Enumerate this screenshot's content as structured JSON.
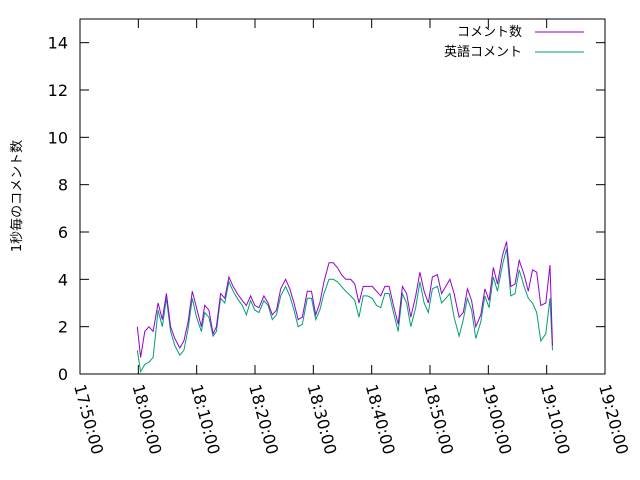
{
  "chart_data": {
    "type": "line",
    "title": "",
    "xlabel": "",
    "ylabel": "1秒毎のコメント数",
    "ylim": [
      0,
      15
    ],
    "xlim": [
      "17:50:00",
      "19:20:00"
    ],
    "y_ticks": [
      0,
      2,
      4,
      6,
      8,
      10,
      12,
      14
    ],
    "x_ticks": [
      "17:50:00",
      "18:00:00",
      "18:10:00",
      "18:20:00",
      "18:30:00",
      "18:40:00",
      "18:50:00",
      "19:00:00",
      "19:10:00",
      "19:20:00"
    ],
    "grid": false,
    "legend_position": "top-right",
    "series": [
      {
        "name": "コメント数",
        "color": "#9400d3",
        "points": [
          [
            "17:59:49",
            2.0
          ],
          [
            "18:00:23",
            0.7
          ],
          [
            "18:01:06",
            1.8
          ],
          [
            "18:01:49",
            2.0
          ],
          [
            "18:02:32",
            1.8
          ],
          [
            "18:03:23",
            3.0
          ],
          [
            "18:04:06",
            2.3
          ],
          [
            "18:04:49",
            3.4
          ],
          [
            "18:05:32",
            2.0
          ],
          [
            "18:06:15",
            1.5
          ],
          [
            "18:07:06",
            1.1
          ],
          [
            "18:07:49",
            1.4
          ],
          [
            "18:08:32",
            2.2
          ],
          [
            "18:09:15",
            3.5
          ],
          [
            "18:09:58",
            2.8
          ],
          [
            "18:10:49",
            2.0
          ],
          [
            "18:11:23",
            2.9
          ],
          [
            "18:12:06",
            2.7
          ],
          [
            "18:12:49",
            1.7
          ],
          [
            "18:13:23",
            2.0
          ],
          [
            "18:14:06",
            3.4
          ],
          [
            "18:14:49",
            3.2
          ],
          [
            "18:15:32",
            4.1
          ],
          [
            "18:16:15",
            3.7
          ],
          [
            "18:16:58",
            3.4
          ],
          [
            "18:17:49",
            3.1
          ],
          [
            "18:18:32",
            2.9
          ],
          [
            "18:19:15",
            3.3
          ],
          [
            "18:19:58",
            2.9
          ],
          [
            "18:20:41",
            2.8
          ],
          [
            "18:21:32",
            3.3
          ],
          [
            "18:22:15",
            3.0
          ],
          [
            "18:22:58",
            2.5
          ],
          [
            "18:23:41",
            2.7
          ],
          [
            "18:24:24",
            3.6
          ],
          [
            "18:25:15",
            4.0
          ],
          [
            "18:25:58",
            3.6
          ],
          [
            "18:26:41",
            3.0
          ],
          [
            "18:27:24",
            2.3
          ],
          [
            "18:28:07",
            2.4
          ],
          [
            "18:28:58",
            3.5
          ],
          [
            "18:29:41",
            3.5
          ],
          [
            "18:30:24",
            2.5
          ],
          [
            "18:31:07",
            3.0
          ],
          [
            "18:31:50",
            3.9
          ],
          [
            "18:32:41",
            4.7
          ],
          [
            "18:33:24",
            4.7
          ],
          [
            "18:34:07",
            4.5
          ],
          [
            "18:34:50",
            4.2
          ],
          [
            "18:35:33",
            4.0
          ],
          [
            "18:36:24",
            4.0
          ],
          [
            "18:37:07",
            3.8
          ],
          [
            "18:37:50",
            3.0
          ],
          [
            "18:38:33",
            3.7
          ],
          [
            "18:39:16",
            3.7
          ],
          [
            "18:40:07",
            3.7
          ],
          [
            "18:40:50",
            3.5
          ],
          [
            "18:41:33",
            3.3
          ],
          [
            "18:42:16",
            3.7
          ],
          [
            "18:42:59",
            3.7
          ],
          [
            "18:43:50",
            2.8
          ],
          [
            "18:44:33",
            2.1
          ],
          [
            "18:45:16",
            3.7
          ],
          [
            "18:45:59",
            3.4
          ],
          [
            "18:46:42",
            2.4
          ],
          [
            "18:47:33",
            3.3
          ],
          [
            "18:48:16",
            4.3
          ],
          [
            "18:48:59",
            3.5
          ],
          [
            "18:49:42",
            3.0
          ],
          [
            "18:50:25",
            4.1
          ],
          [
            "18:51:16",
            4.2
          ],
          [
            "18:51:59",
            3.4
          ],
          [
            "18:52:42",
            3.7
          ],
          [
            "18:53:25",
            4.0
          ],
          [
            "18:54:08",
            3.4
          ],
          [
            "18:54:59",
            2.4
          ],
          [
            "18:55:42",
            2.6
          ],
          [
            "18:56:25",
            3.6
          ],
          [
            "18:57:08",
            3.1
          ],
          [
            "18:57:51",
            2.0
          ],
          [
            "18:58:42",
            2.5
          ],
          [
            "18:59:25",
            3.6
          ],
          [
            "19:00:08",
            3.1
          ],
          [
            "19:00:51",
            4.5
          ],
          [
            "19:01:34",
            3.8
          ],
          [
            "19:02:25",
            5.0
          ],
          [
            "19:03:08",
            5.6
          ],
          [
            "19:03:51",
            3.7
          ],
          [
            "19:04:34",
            3.8
          ],
          [
            "19:05:17",
            4.8
          ],
          [
            "19:06:08",
            4.2
          ],
          [
            "19:06:51",
            3.5
          ],
          [
            "19:07:34",
            4.4
          ],
          [
            "19:08:17",
            4.3
          ],
          [
            "19:09:00",
            2.9
          ],
          [
            "19:09:51",
            3.0
          ],
          [
            "19:10:34",
            4.6
          ],
          [
            "19:11:00",
            1.2
          ]
        ]
      },
      {
        "name": "英語コメント",
        "color": "#009e73",
        "points": [
          [
            "17:59:49",
            1.0
          ],
          [
            "18:00:23",
            0.1
          ],
          [
            "18:01:06",
            0.4
          ],
          [
            "18:01:49",
            0.5
          ],
          [
            "18:02:32",
            0.7
          ],
          [
            "18:03:23",
            2.7
          ],
          [
            "18:04:06",
            2.0
          ],
          [
            "18:04:49",
            3.2
          ],
          [
            "18:05:32",
            1.8
          ],
          [
            "18:06:15",
            1.2
          ],
          [
            "18:07:06",
            0.8
          ],
          [
            "18:07:49",
            1.0
          ],
          [
            "18:08:32",
            1.9
          ],
          [
            "18:09:15",
            3.2
          ],
          [
            "18:09:58",
            2.4
          ],
          [
            "18:10:49",
            1.8
          ],
          [
            "18:11:23",
            2.6
          ],
          [
            "18:12:06",
            2.4
          ],
          [
            "18:12:49",
            1.6
          ],
          [
            "18:13:23",
            1.8
          ],
          [
            "18:14:06",
            3.2
          ],
          [
            "18:14:49",
            3.0
          ],
          [
            "18:15:32",
            3.9
          ],
          [
            "18:16:15",
            3.5
          ],
          [
            "18:16:58",
            3.2
          ],
          [
            "18:17:49",
            2.9
          ],
          [
            "18:18:32",
            2.5
          ],
          [
            "18:19:15",
            3.1
          ],
          [
            "18:19:58",
            2.7
          ],
          [
            "18:20:41",
            2.6
          ],
          [
            "18:21:32",
            3.1
          ],
          [
            "18:22:15",
            2.9
          ],
          [
            "18:22:58",
            2.3
          ],
          [
            "18:23:41",
            2.5
          ],
          [
            "18:24:24",
            3.3
          ],
          [
            "18:25:15",
            3.7
          ],
          [
            "18:25:58",
            3.3
          ],
          [
            "18:26:41",
            2.7
          ],
          [
            "18:27:24",
            2.0
          ],
          [
            "18:28:07",
            2.1
          ],
          [
            "18:28:58",
            3.2
          ],
          [
            "18:29:41",
            3.2
          ],
          [
            "18:30:24",
            2.3
          ],
          [
            "18:31:07",
            2.7
          ],
          [
            "18:31:50",
            3.4
          ],
          [
            "18:32:41",
            4.0
          ],
          [
            "18:33:24",
            4.0
          ],
          [
            "18:34:07",
            3.9
          ],
          [
            "18:34:50",
            3.7
          ],
          [
            "18:35:33",
            3.5
          ],
          [
            "18:36:24",
            3.3
          ],
          [
            "18:37:07",
            3.1
          ],
          [
            "18:37:50",
            2.4
          ],
          [
            "18:38:33",
            3.3
          ],
          [
            "18:39:16",
            3.3
          ],
          [
            "18:40:07",
            3.2
          ],
          [
            "18:40:50",
            2.9
          ],
          [
            "18:41:33",
            2.8
          ],
          [
            "18:42:16",
            3.4
          ],
          [
            "18:42:59",
            3.4
          ],
          [
            "18:43:50",
            2.5
          ],
          [
            "18:44:33",
            1.8
          ],
          [
            "18:45:16",
            3.4
          ],
          [
            "18:45:59",
            3.0
          ],
          [
            "18:46:42",
            2.0
          ],
          [
            "18:47:33",
            2.8
          ],
          [
            "18:48:16",
            3.9
          ],
          [
            "18:48:59",
            3.0
          ],
          [
            "18:49:42",
            2.6
          ],
          [
            "18:50:25",
            3.6
          ],
          [
            "18:51:16",
            3.7
          ],
          [
            "18:51:59",
            3.0
          ],
          [
            "18:52:42",
            3.2
          ],
          [
            "18:53:25",
            3.4
          ],
          [
            "18:54:08",
            2.4
          ],
          [
            "18:54:59",
            1.6
          ],
          [
            "18:55:42",
            2.3
          ],
          [
            "18:56:25",
            3.2
          ],
          [
            "18:57:08",
            2.7
          ],
          [
            "18:57:51",
            1.5
          ],
          [
            "18:58:42",
            2.2
          ],
          [
            "18:59:25",
            3.3
          ],
          [
            "19:00:08",
            2.8
          ],
          [
            "19:00:51",
            4.1
          ],
          [
            "19:01:34",
            3.5
          ],
          [
            "19:02:25",
            4.6
          ],
          [
            "19:03:08",
            5.3
          ],
          [
            "19:03:51",
            3.3
          ],
          [
            "19:04:34",
            3.4
          ],
          [
            "19:05:17",
            4.4
          ],
          [
            "19:06:08",
            3.7
          ],
          [
            "19:06:51",
            3.2
          ],
          [
            "19:07:34",
            3.0
          ],
          [
            "19:08:17",
            2.6
          ],
          [
            "19:09:00",
            1.4
          ],
          [
            "19:09:51",
            1.7
          ],
          [
            "19:10:34",
            3.2
          ],
          [
            "19:11:00",
            1.0
          ]
        ]
      }
    ]
  }
}
